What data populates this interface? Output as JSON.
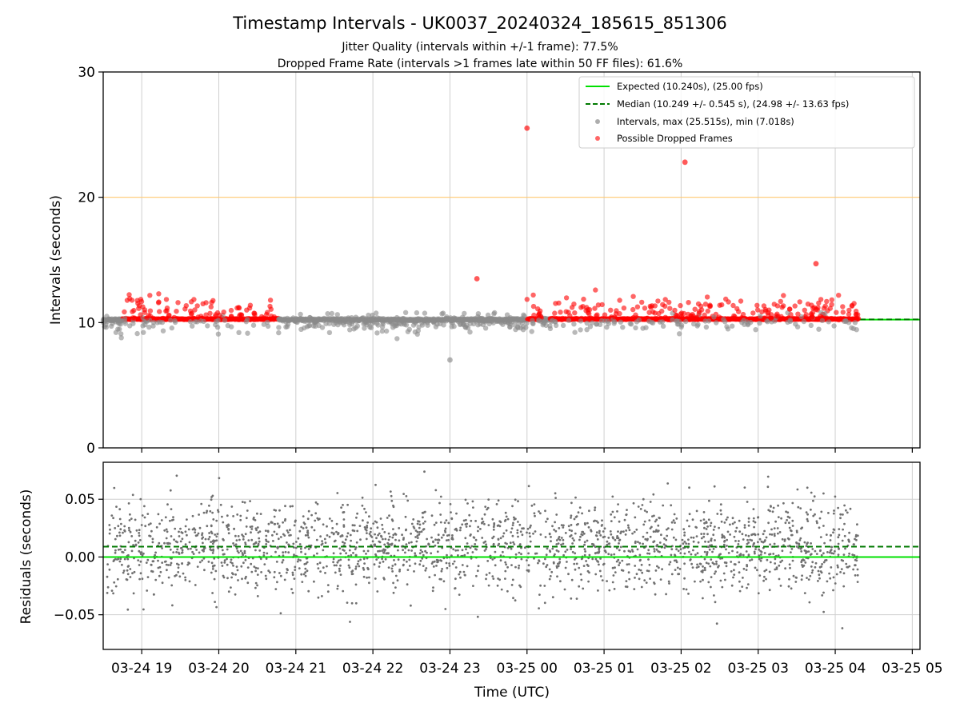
{
  "chart_data": [
    {
      "type": "scatter",
      "title": "Timestamp Intervals - UK0037_20240324_185615_851306",
      "subtitle_1": "Jitter Quality (intervals within +/-1 frame): 77.5%",
      "subtitle_2": "Dropped Frame Rate (intervals >1 frames late within 50 FF files): 61.6%",
      "xlabel": "",
      "ylabel": "Intervals (seconds)",
      "ylim": [
        0,
        30
      ],
      "yticks": [
        "0",
        "10",
        "20",
        "30"
      ],
      "xlim_hours": [
        18.5,
        29.1
      ],
      "xticks_hours": [
        19,
        20,
        21,
        22,
        23,
        24,
        25,
        26,
        27,
        28,
        29
      ],
      "grid": "vertical",
      "legend_position": "top-right",
      "reference_lines": [
        {
          "name": "Expected (10.240s), (25.00 fps)",
          "value": 10.24,
          "style": "solid",
          "color": "#00e000"
        },
        {
          "name": "Median (10.249 +/- 0.545 s), (24.98 +/- 13.63 fps)",
          "value": 10.249,
          "style": "dashed",
          "color": "#007a00"
        },
        {
          "name": "",
          "value": 20,
          "style": "solid",
          "color": "#ffc870"
        }
      ],
      "series": [
        {
          "name": "Intervals, max (25.515s), min (7.018s)",
          "color": "#8a8a8a"
        },
        {
          "name": "Possible Dropped Frames",
          "color": "#ff0000"
        }
      ],
      "data_range_hours": [
        18.5,
        28.3
      ],
      "normal_value": 10.24,
      "dropped_value": 10.28,
      "dropped_segments_hours": [
        [
          18.75,
          20.77
        ],
        [
          24.0,
          24.2
        ],
        [
          24.3,
          28.3
        ]
      ],
      "notable_points": [
        {
          "x": 24.0,
          "y": 25.515,
          "series": "Possible Dropped Frames"
        },
        {
          "x": 26.05,
          "y": 22.8,
          "series": "Possible Dropped Frames"
        },
        {
          "x": 27.75,
          "y": 14.7,
          "series": "Possible Dropped Frames"
        },
        {
          "x": 23.35,
          "y": 13.5,
          "series": "Possible Dropped Frames"
        },
        {
          "x": 23.0,
          "y": 7.018,
          "series": "Intervals, max (25.515s), min (7.018s)"
        }
      ]
    },
    {
      "type": "scatter",
      "xlabel": "Time (UTC)",
      "ylabel": "Residuals (seconds)",
      "ylim": [
        -0.08,
        0.082
      ],
      "yticks": [
        "−0.05",
        "0.00",
        "0.05"
      ],
      "yticks_values": [
        -0.05,
        0.0,
        0.05
      ],
      "xtick_labels": [
        "03-24 19",
        "03-24 20",
        "03-24 21",
        "03-24 22",
        "03-24 23",
        "03-25 00",
        "03-25 01",
        "03-25 02",
        "03-25 03",
        "03-25 04",
        "03-25 05"
      ],
      "grid": "both",
      "reference_lines": [
        {
          "name": "Expected",
          "value": 0.0,
          "style": "solid",
          "color": "#00e000"
        },
        {
          "name": "Median",
          "value": 0.009,
          "style": "dashed",
          "color": "#007a00"
        }
      ],
      "series": [
        {
          "name": "Residuals",
          "color": "#707070",
          "spread_sd": 0.02,
          "center": 0.009
        }
      ]
    }
  ]
}
